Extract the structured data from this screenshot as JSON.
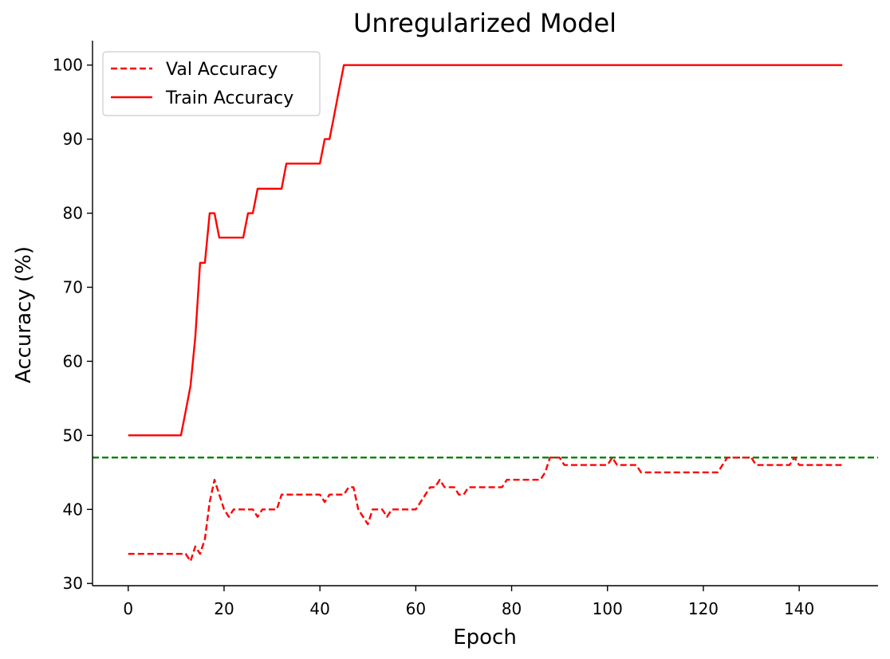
{
  "chart_data": {
    "type": "line",
    "title": "Unregularized Model",
    "xlabel": "Epoch",
    "ylabel": "Accuracy (%)",
    "xlim": [
      -7.45,
      156.45
    ],
    "ylim": [
      29.7,
      103.3
    ],
    "xticks": [
      0,
      20,
      40,
      60,
      80,
      100,
      120,
      140
    ],
    "yticks": [
      30,
      40,
      50,
      60,
      70,
      80,
      90,
      100
    ],
    "grid": false,
    "legend_position": "top-left",
    "series": [
      {
        "name": "Val Accuracy",
        "style": "dashed",
        "color": "#ff0000",
        "x": [
          0,
          1,
          2,
          3,
          4,
          5,
          6,
          7,
          8,
          9,
          10,
          11,
          12,
          13,
          14,
          15,
          16,
          17,
          18,
          19,
          20,
          21,
          22,
          23,
          24,
          25,
          26,
          27,
          28,
          29,
          30,
          31,
          32,
          33,
          34,
          35,
          36,
          37,
          38,
          39,
          40,
          41,
          42,
          43,
          44,
          45,
          46,
          47,
          48,
          49,
          50,
          51,
          52,
          53,
          54,
          55,
          56,
          57,
          58,
          59,
          60,
          61,
          62,
          63,
          64,
          65,
          66,
          67,
          68,
          69,
          70,
          71,
          72,
          73,
          74,
          75,
          76,
          77,
          78,
          79,
          80,
          81,
          82,
          83,
          84,
          85,
          86,
          87,
          88,
          89,
          90,
          91,
          92,
          93,
          94,
          95,
          96,
          97,
          98,
          99,
          100,
          101,
          102,
          103,
          104,
          105,
          106,
          107,
          108,
          109,
          110,
          111,
          112,
          113,
          114,
          115,
          116,
          117,
          118,
          119,
          120,
          121,
          122,
          123,
          124,
          125,
          126,
          127,
          128,
          129,
          130,
          131,
          132,
          133,
          134,
          135,
          136,
          137,
          138,
          139,
          140,
          141,
          142,
          143,
          144,
          145,
          146,
          147,
          148,
          149
        ],
        "y": [
          34,
          34,
          34,
          34,
          34,
          34,
          34,
          34,
          34,
          34,
          34,
          34,
          34,
          33,
          35,
          34,
          36,
          41,
          44,
          42,
          40,
          39,
          40,
          40,
          40,
          40,
          40,
          39,
          40,
          40,
          40,
          40,
          42,
          42,
          42,
          42,
          42,
          42,
          42,
          42,
          42,
          41,
          42,
          42,
          42,
          42,
          43,
          43,
          40,
          39,
          38,
          40,
          40,
          40,
          39,
          40,
          40,
          40,
          40,
          40,
          40,
          41,
          42,
          43,
          43,
          44,
          43,
          43,
          43,
          42,
          42,
          43,
          43,
          43,
          43,
          43,
          43,
          43,
          43,
          44,
          44,
          44,
          44,
          44,
          44,
          44,
          44,
          45,
          47,
          47,
          47,
          46,
          46,
          46,
          46,
          46,
          46,
          46,
          46,
          46,
          46,
          47,
          46,
          46,
          46,
          46,
          46,
          45,
          45,
          45,
          45,
          45,
          45,
          45,
          45,
          45,
          45,
          45,
          45,
          45,
          45,
          45,
          45,
          45,
          46,
          47,
          47,
          47,
          47,
          47,
          47,
          46,
          46,
          46,
          46,
          46,
          46,
          46,
          46,
          47,
          46,
          46,
          46,
          46,
          46,
          46,
          46,
          46,
          46,
          46
        ]
      },
      {
        "name": "Train Accuracy",
        "style": "solid",
        "color": "#ff0000",
        "x": [
          0,
          1,
          2,
          3,
          4,
          5,
          6,
          7,
          8,
          9,
          10,
          11,
          12,
          13,
          14,
          15,
          16,
          17,
          18,
          19,
          20,
          21,
          22,
          23,
          24,
          25,
          26,
          27,
          28,
          29,
          30,
          31,
          32,
          33,
          34,
          35,
          36,
          37,
          38,
          39,
          40,
          41,
          42,
          43,
          44,
          45,
          46,
          47,
          48,
          49,
          50,
          51,
          52,
          53,
          54,
          55,
          56,
          57,
          58,
          59,
          60,
          61,
          62,
          63,
          64,
          65,
          66,
          67,
          68,
          69,
          70,
          71,
          72,
          73,
          74,
          75,
          76,
          77,
          78,
          79,
          80,
          81,
          82,
          83,
          84,
          85,
          86,
          87,
          88,
          89,
          90,
          91,
          92,
          93,
          94,
          95,
          96,
          97,
          98,
          99,
          100,
          101,
          102,
          103,
          104,
          105,
          106,
          107,
          108,
          109,
          110,
          111,
          112,
          113,
          114,
          115,
          116,
          117,
          118,
          119,
          120,
          121,
          122,
          123,
          124,
          125,
          126,
          127,
          128,
          129,
          130,
          131,
          132,
          133,
          134,
          135,
          136,
          137,
          138,
          139,
          140,
          141,
          142,
          143,
          144,
          145,
          146,
          147,
          148,
          149
        ],
        "y": [
          50,
          50,
          50,
          50,
          50,
          50,
          50,
          50,
          50,
          50,
          50,
          50,
          53.3,
          56.7,
          63.3,
          73.3,
          73.3,
          80,
          80,
          76.7,
          76.7,
          76.7,
          76.7,
          76.7,
          76.7,
          80,
          80,
          83.3,
          83.3,
          83.3,
          83.3,
          83.3,
          83.3,
          86.7,
          86.7,
          86.7,
          86.7,
          86.7,
          86.7,
          86.7,
          86.7,
          90,
          90,
          93.3,
          96.7,
          100,
          100,
          100,
          100,
          100,
          100,
          100,
          100,
          100,
          100,
          100,
          100,
          100,
          100,
          100,
          100,
          100,
          100,
          100,
          100,
          100,
          100,
          100,
          100,
          100,
          100,
          100,
          100,
          100,
          100,
          100,
          100,
          100,
          100,
          100,
          100,
          100,
          100,
          100,
          100,
          100,
          100,
          100,
          100,
          100,
          100,
          100,
          100,
          100,
          100,
          100,
          100,
          100,
          100,
          100,
          100,
          100,
          100,
          100,
          100,
          100,
          100,
          100,
          100,
          100,
          100,
          100,
          100,
          100,
          100,
          100,
          100,
          100,
          100,
          100,
          100,
          100,
          100,
          100,
          100,
          100,
          100,
          100,
          100,
          100,
          100,
          100,
          100,
          100,
          100,
          100,
          100,
          100,
          100,
          100,
          100,
          100,
          100,
          100,
          100,
          100,
          100,
          100,
          100,
          100
        ]
      }
    ],
    "reference_line": {
      "orientation": "horizontal",
      "y": 47,
      "style": "dashed",
      "color": "#008000"
    }
  }
}
